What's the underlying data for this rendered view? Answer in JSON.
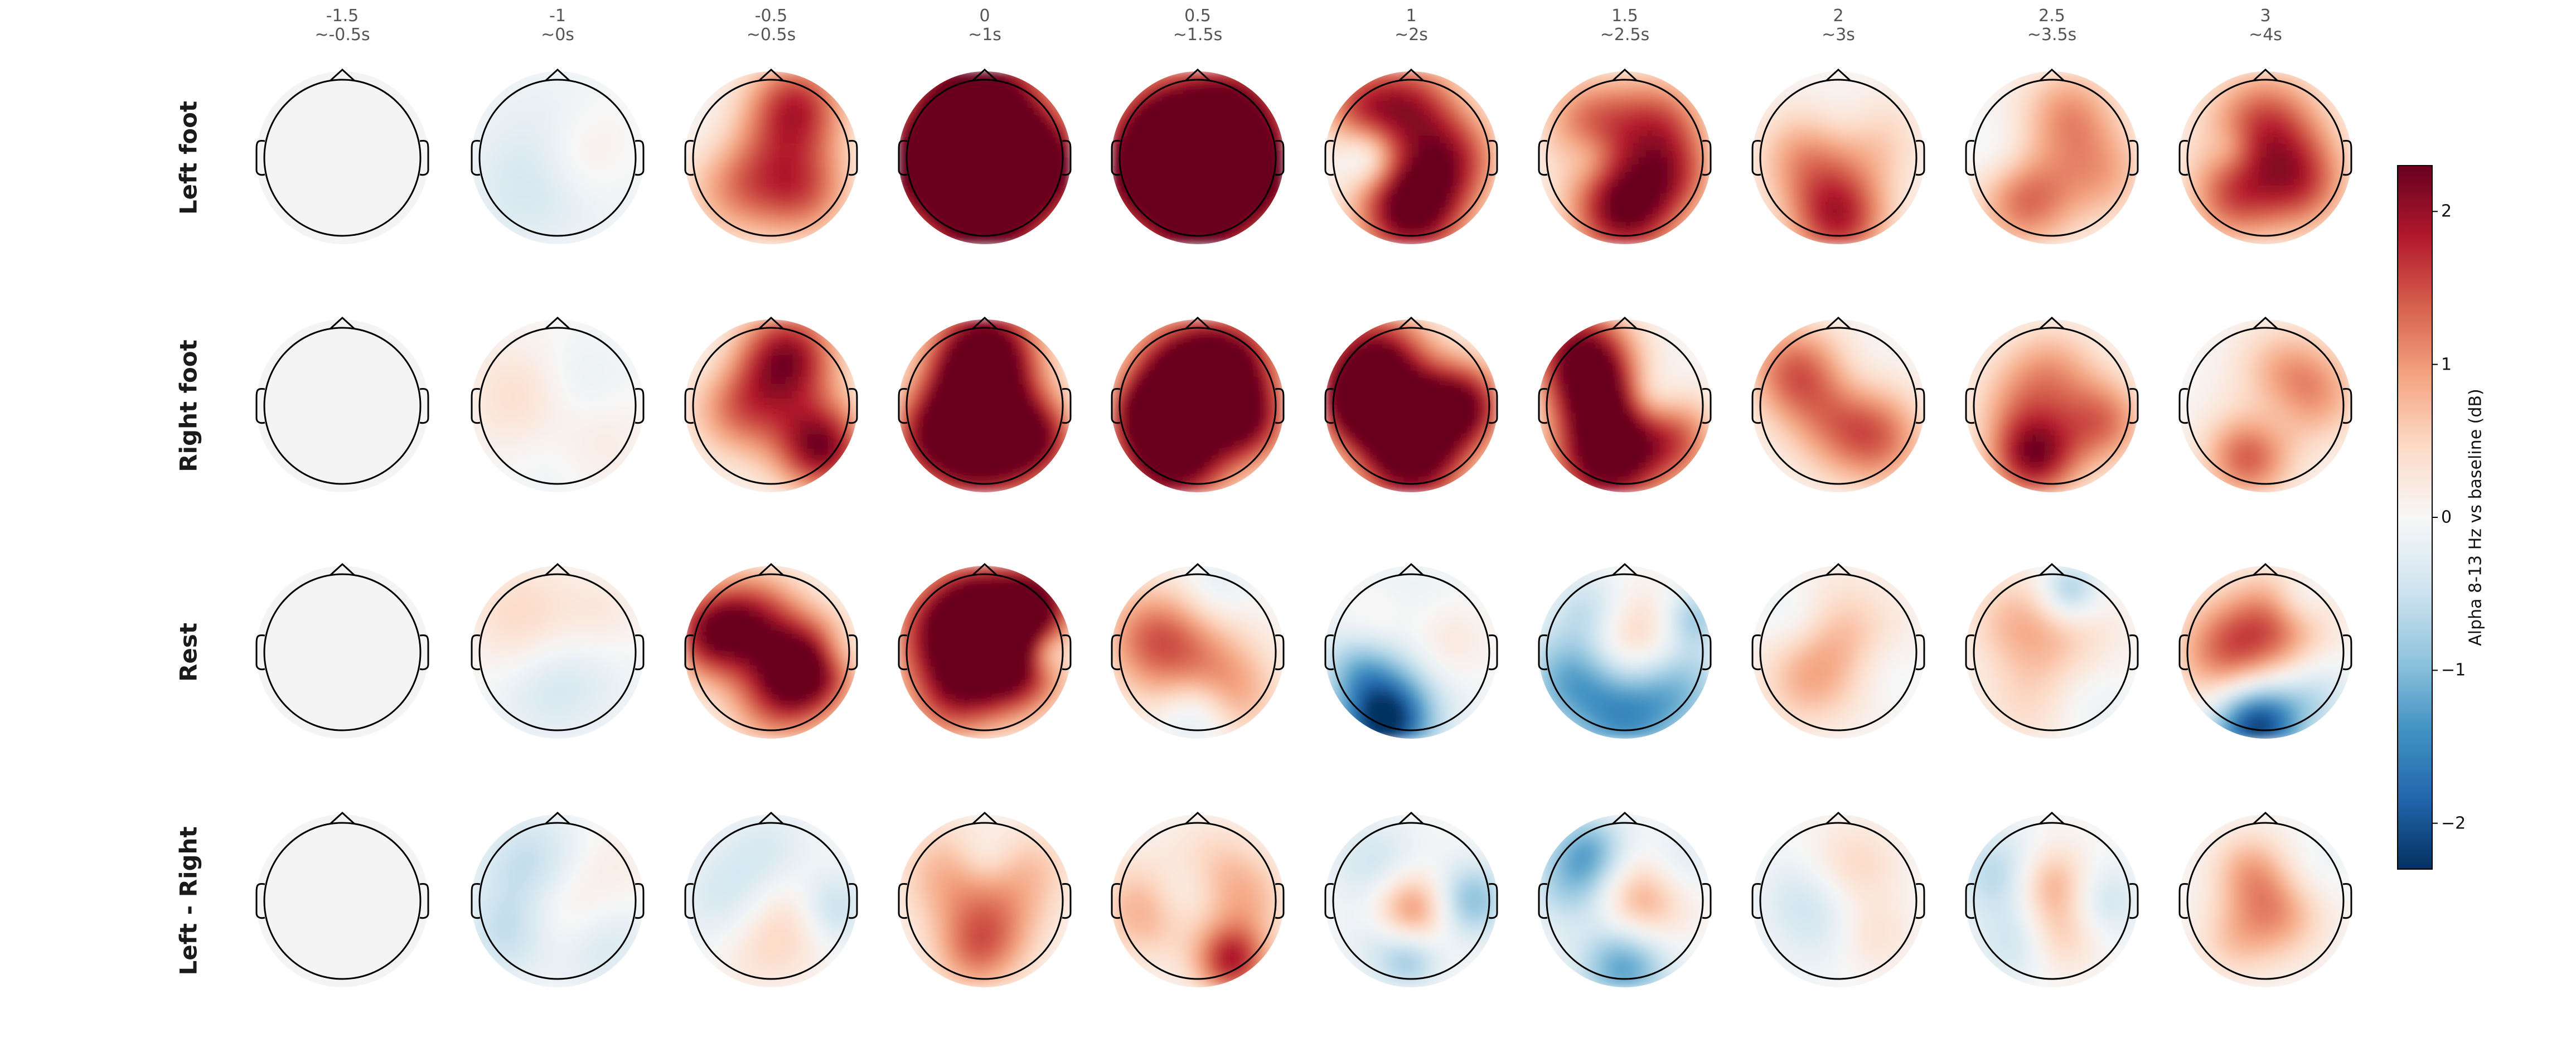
{
  "chart_data": {
    "type": "heatmap",
    "subtype": "topomap-grid",
    "columns": [
      {
        "top": "-1.5",
        "bottom": "~-0.5s"
      },
      {
        "top": "-1",
        "bottom": "~0s"
      },
      {
        "top": "-0.5",
        "bottom": "~0.5s"
      },
      {
        "top": "0",
        "bottom": "~1s"
      },
      {
        "top": "0.5",
        "bottom": "~1.5s"
      },
      {
        "top": "1",
        "bottom": "~2s"
      },
      {
        "top": "1.5",
        "bottom": "~2.5s"
      },
      {
        "top": "2",
        "bottom": "~3s"
      },
      {
        "top": "2.5",
        "bottom": "~3.5s"
      },
      {
        "top": "3",
        "bottom": "~4s"
      }
    ],
    "rows": [
      "Left foot",
      "Right foot",
      "Rest",
      "Left - Right"
    ],
    "colorbar": {
      "label": "Alpha 8-13 Hz vs baseline (dB)",
      "range": [
        -2.3,
        2.3
      ],
      "ticks": [
        -2,
        -1,
        0,
        1,
        2
      ],
      "tick_labels": [
        "−2",
        "−1",
        "0",
        "1",
        "2"
      ],
      "colormap": "RdBu_r"
    },
    "maps": [
      [
        [],
        [
          [
            0.5,
            0.5,
            -0.3,
            0.35
          ],
          [
            0.65,
            0.5,
            0.3,
            0.18
          ],
          [
            0.3,
            0.72,
            -0.2,
            0.22
          ],
          [
            0.8,
            0.3,
            0.1,
            0.2
          ]
        ],
        [
          [
            0.65,
            0.2,
            1.6,
            0.2
          ],
          [
            0.3,
            0.65,
            1.0,
            0.22
          ],
          [
            0.7,
            0.7,
            1.1,
            0.2
          ],
          [
            0.2,
            0.45,
            -0.3,
            0.18
          ],
          [
            0.5,
            0.5,
            0.5,
            0.25
          ]
        ],
        [
          [
            0.5,
            0.2,
            2.4,
            0.25
          ],
          [
            0.5,
            0.8,
            2.6,
            0.25
          ],
          [
            0.15,
            0.55,
            2.0,
            0.2
          ],
          [
            0.85,
            0.55,
            1.9,
            0.2
          ],
          [
            0.5,
            0.5,
            1.0,
            0.3
          ],
          [
            0.3,
            0.25,
            1.0,
            0.18
          ]
        ],
        [
          [
            0.3,
            0.3,
            2.0,
            0.22
          ],
          [
            0.7,
            0.25,
            2.3,
            0.22
          ],
          [
            0.5,
            0.82,
            2.6,
            0.25
          ],
          [
            0.5,
            0.5,
            0.4,
            0.25
          ],
          [
            0.15,
            0.6,
            1.8,
            0.2
          ],
          [
            0.85,
            0.6,
            2.0,
            0.2
          ]
        ],
        [
          [
            0.5,
            0.2,
            1.5,
            0.2
          ],
          [
            0.5,
            0.8,
            2.5,
            0.22
          ],
          [
            0.25,
            0.5,
            -0.8,
            0.12
          ],
          [
            0.75,
            0.5,
            1.4,
            0.2
          ],
          [
            0.2,
            0.2,
            1.2,
            0.18
          ]
        ],
        [
          [
            0.5,
            0.8,
            2.3,
            0.22
          ],
          [
            0.3,
            0.3,
            1.2,
            0.2
          ],
          [
            0.7,
            0.3,
            1.3,
            0.2
          ],
          [
            0.3,
            0.5,
            -0.5,
            0.12
          ],
          [
            0.8,
            0.6,
            1.0,
            0.18
          ]
        ],
        [
          [
            0.5,
            0.85,
            1.8,
            0.2
          ],
          [
            0.3,
            0.5,
            0.9,
            0.2
          ],
          [
            0.7,
            0.4,
            0.6,
            0.2
          ],
          [
            0.55,
            0.3,
            -0.3,
            0.15
          ]
        ],
        [
          [
            0.35,
            0.75,
            1.3,
            0.2
          ],
          [
            0.6,
            0.25,
            1.0,
            0.2
          ],
          [
            0.8,
            0.6,
            0.8,
            0.2
          ],
          [
            0.2,
            0.5,
            -0.3,
            0.15
          ]
        ],
        [
          [
            0.5,
            0.3,
            1.1,
            0.22
          ],
          [
            0.7,
            0.65,
            1.2,
            0.2
          ],
          [
            0.3,
            0.75,
            1.0,
            0.18
          ],
          [
            0.3,
            0.45,
            -0.4,
            0.1
          ],
          [
            0.5,
            0.5,
            0.6,
            0.3
          ]
        ]
      ],
      [
        [],
        [
          [
            0.3,
            0.45,
            0.45,
            0.22
          ],
          [
            0.6,
            0.4,
            -0.3,
            0.2
          ],
          [
            0.7,
            0.7,
            0.3,
            0.2
          ],
          [
            0.5,
            0.8,
            -0.2,
            0.2
          ]
        ],
        [
          [
            0.6,
            0.2,
            1.8,
            0.2
          ],
          [
            0.8,
            0.75,
            2.0,
            0.18
          ],
          [
            0.3,
            0.5,
            1.0,
            0.2
          ],
          [
            0.55,
            0.5,
            0.6,
            0.25
          ],
          [
            0.2,
            0.3,
            -0.2,
            0.15
          ]
        ],
        [
          [
            0.5,
            0.2,
            2.6,
            0.22
          ],
          [
            0.45,
            0.55,
            2.0,
            0.22
          ],
          [
            0.2,
            0.7,
            1.5,
            0.2
          ],
          [
            0.8,
            0.7,
            1.8,
            0.18
          ],
          [
            0.5,
            0.85,
            1.4,
            0.2
          ]
        ],
        [
          [
            0.4,
            0.3,
            2.0,
            0.22
          ],
          [
            0.7,
            0.25,
            1.8,
            0.2
          ],
          [
            0.35,
            0.8,
            2.5,
            0.22
          ],
          [
            0.5,
            0.5,
            0.6,
            0.25
          ],
          [
            0.8,
            0.6,
            1.6,
            0.18
          ],
          [
            0.2,
            0.55,
            1.4,
            0.15
          ]
        ],
        [
          [
            0.3,
            0.25,
            2.2,
            0.22
          ],
          [
            0.5,
            0.8,
            2.6,
            0.22
          ],
          [
            0.2,
            0.5,
            2.0,
            0.18
          ],
          [
            0.8,
            0.5,
            2.1,
            0.18
          ],
          [
            0.55,
            0.5,
            0.5,
            0.15
          ]
        ],
        [
          [
            0.25,
            0.2,
            2.1,
            0.2
          ],
          [
            0.4,
            0.8,
            2.6,
            0.22
          ],
          [
            0.65,
            0.45,
            -0.5,
            0.12
          ],
          [
            0.35,
            0.45,
            1.5,
            0.18
          ],
          [
            0.8,
            0.7,
            1.2,
            0.18
          ]
        ],
        [
          [
            0.25,
            0.3,
            1.3,
            0.2
          ],
          [
            0.5,
            0.6,
            0.9,
            0.22
          ],
          [
            0.75,
            0.7,
            1.0,
            0.2
          ],
          [
            0.6,
            0.35,
            -0.2,
            0.15
          ]
        ],
        [
          [
            0.4,
            0.8,
            2.0,
            0.18
          ],
          [
            0.5,
            0.3,
            0.8,
            0.2
          ],
          [
            0.8,
            0.6,
            1.2,
            0.18
          ],
          [
            0.3,
            0.5,
            0.6,
            0.2
          ]
        ],
        [
          [
            0.4,
            0.8,
            1.4,
            0.18
          ],
          [
            0.6,
            0.3,
            0.7,
            0.2
          ],
          [
            0.55,
            0.55,
            -0.3,
            0.15
          ],
          [
            0.8,
            0.45,
            0.8,
            0.2
          ]
        ]
      ],
      [
        [],
        [
          [
            0.3,
            0.3,
            0.5,
            0.22
          ],
          [
            0.6,
            0.6,
            -0.3,
            0.25
          ],
          [
            0.75,
            0.3,
            0.3,
            0.18
          ],
          [
            0.4,
            0.75,
            -0.2,
            0.2
          ]
        ],
        [
          [
            0.15,
            0.4,
            1.8,
            0.18
          ],
          [
            0.7,
            0.6,
            2.4,
            0.2
          ],
          [
            0.4,
            0.3,
            1.4,
            0.2
          ],
          [
            0.5,
            0.8,
            0.9,
            0.2
          ],
          [
            0.9,
            0.5,
            -0.4,
            0.1
          ]
        ],
        [
          [
            0.3,
            0.4,
            2.0,
            0.25
          ],
          [
            0.65,
            0.55,
            2.4,
            0.22
          ],
          [
            0.5,
            0.25,
            1.6,
            0.2
          ],
          [
            0.85,
            0.5,
            -1.0,
            0.1
          ],
          [
            0.3,
            0.8,
            1.0,
            0.18
          ],
          [
            0.8,
            0.2,
            1.8,
            0.15
          ]
        ],
        [
          [
            0.4,
            0.5,
            1.0,
            0.25
          ],
          [
            0.6,
            0.15,
            -0.4,
            0.15
          ],
          [
            0.7,
            0.75,
            0.8,
            0.2
          ],
          [
            0.5,
            0.85,
            -0.8,
            0.15
          ],
          [
            0.2,
            0.4,
            0.7,
            0.2
          ]
        ],
        [
          [
            0.35,
            0.9,
            -2.3,
            0.18
          ],
          [
            0.5,
            0.5,
            -0.5,
            0.3
          ],
          [
            0.7,
            0.45,
            0.6,
            0.18
          ],
          [
            0.3,
            0.35,
            0.4,
            0.15
          ],
          [
            0.2,
            0.6,
            -0.7,
            0.15
          ]
        ],
        [
          [
            0.2,
            0.65,
            -1.2,
            0.2
          ],
          [
            0.8,
            0.7,
            -1.0,
            0.2
          ],
          [
            0.5,
            0.9,
            -1.2,
            0.2
          ],
          [
            0.55,
            0.45,
            0.8,
            0.2
          ],
          [
            0.3,
            0.25,
            -0.6,
            0.15
          ],
          [
            0.9,
            0.3,
            -0.8,
            0.12
          ]
        ],
        [
          [
            0.5,
            0.45,
            0.8,
            0.25
          ],
          [
            0.25,
            0.3,
            -0.4,
            0.15
          ],
          [
            0.75,
            0.6,
            -0.3,
            0.15
          ],
          [
            0.3,
            0.7,
            0.5,
            0.18
          ]
        ],
        [
          [
            0.5,
            0.45,
            0.7,
            0.25
          ],
          [
            0.6,
            0.15,
            -1.0,
            0.12
          ],
          [
            0.25,
            0.3,
            0.4,
            0.18
          ],
          [
            0.7,
            0.75,
            -0.3,
            0.18
          ],
          [
            0.35,
            0.85,
            0.3,
            0.18
          ]
        ],
        [
          [
            0.45,
            0.92,
            -2.3,
            0.18
          ],
          [
            0.3,
            0.5,
            1.4,
            0.22
          ],
          [
            0.6,
            0.3,
            1.0,
            0.2
          ],
          [
            0.8,
            0.75,
            -0.5,
            0.15
          ],
          [
            0.7,
            0.2,
            -0.6,
            0.12
          ]
        ]
      ],
      [
        [],
        [
          [
            0.35,
            0.3,
            -0.6,
            0.22
          ],
          [
            0.55,
            0.55,
            0.4,
            0.18
          ],
          [
            0.2,
            0.7,
            -0.5,
            0.18
          ],
          [
            0.75,
            0.75,
            -0.4,
            0.2
          ],
          [
            0.8,
            0.3,
            0.2,
            0.18
          ]
        ],
        [
          [
            0.3,
            0.5,
            -0.5,
            0.22
          ],
          [
            0.6,
            0.6,
            0.6,
            0.2
          ],
          [
            0.85,
            0.55,
            -0.7,
            0.15
          ],
          [
            0.5,
            0.2,
            -0.3,
            0.18
          ],
          [
            0.4,
            0.8,
            0.3,
            0.18
          ]
        ],
        [
          [
            0.3,
            0.35,
            0.8,
            0.22
          ],
          [
            0.6,
            0.6,
            0.7,
            0.2
          ],
          [
            0.45,
            0.8,
            1.0,
            0.18
          ],
          [
            0.5,
            0.25,
            -0.4,
            0.12
          ],
          [
            0.8,
            0.3,
            0.5,
            0.18
          ]
        ],
        [
          [
            0.2,
            0.55,
            0.9,
            0.2
          ],
          [
            0.7,
            0.85,
            1.8,
            0.15
          ],
          [
            0.6,
            0.3,
            0.5,
            0.2
          ],
          [
            0.4,
            0.45,
            -0.5,
            0.15
          ],
          [
            0.8,
            0.5,
            0.6,
            0.18
          ]
        ],
        [
          [
            0.5,
            0.55,
            1.2,
            0.15
          ],
          [
            0.85,
            0.5,
            -1.0,
            0.15
          ],
          [
            0.3,
            0.3,
            -0.5,
            0.18
          ],
          [
            0.35,
            0.75,
            -0.4,
            0.15
          ],
          [
            0.5,
            0.85,
            -0.7,
            0.12
          ]
        ],
        [
          [
            0.6,
            0.5,
            1.0,
            0.18
          ],
          [
            0.5,
            0.88,
            -1.3,
            0.18
          ],
          [
            0.2,
            0.4,
            -0.8,
            0.18
          ],
          [
            0.3,
            0.2,
            -0.9,
            0.15
          ],
          [
            0.8,
            0.3,
            -0.4,
            0.15
          ]
        ],
        [
          [
            0.6,
            0.3,
            0.5,
            0.18
          ],
          [
            0.4,
            0.6,
            -0.4,
            0.2
          ],
          [
            0.7,
            0.7,
            0.4,
            0.15
          ],
          [
            0.25,
            0.45,
            -0.2,
            0.15
          ]
        ],
        [
          [
            0.5,
            0.4,
            0.9,
            0.15
          ],
          [
            0.55,
            0.7,
            0.6,
            0.15
          ],
          [
            0.2,
            0.35,
            -0.7,
            0.18
          ],
          [
            0.8,
            0.5,
            -0.5,
            0.15
          ],
          [
            0.3,
            0.75,
            -0.5,
            0.15
          ]
        ],
        [
          [
            0.55,
            0.55,
            1.1,
            0.2
          ],
          [
            0.4,
            0.3,
            0.6,
            0.15
          ],
          [
            0.3,
            0.75,
            0.4,
            0.15
          ],
          [
            0.75,
            0.35,
            -0.3,
            0.15
          ]
        ]
      ]
    ]
  }
}
